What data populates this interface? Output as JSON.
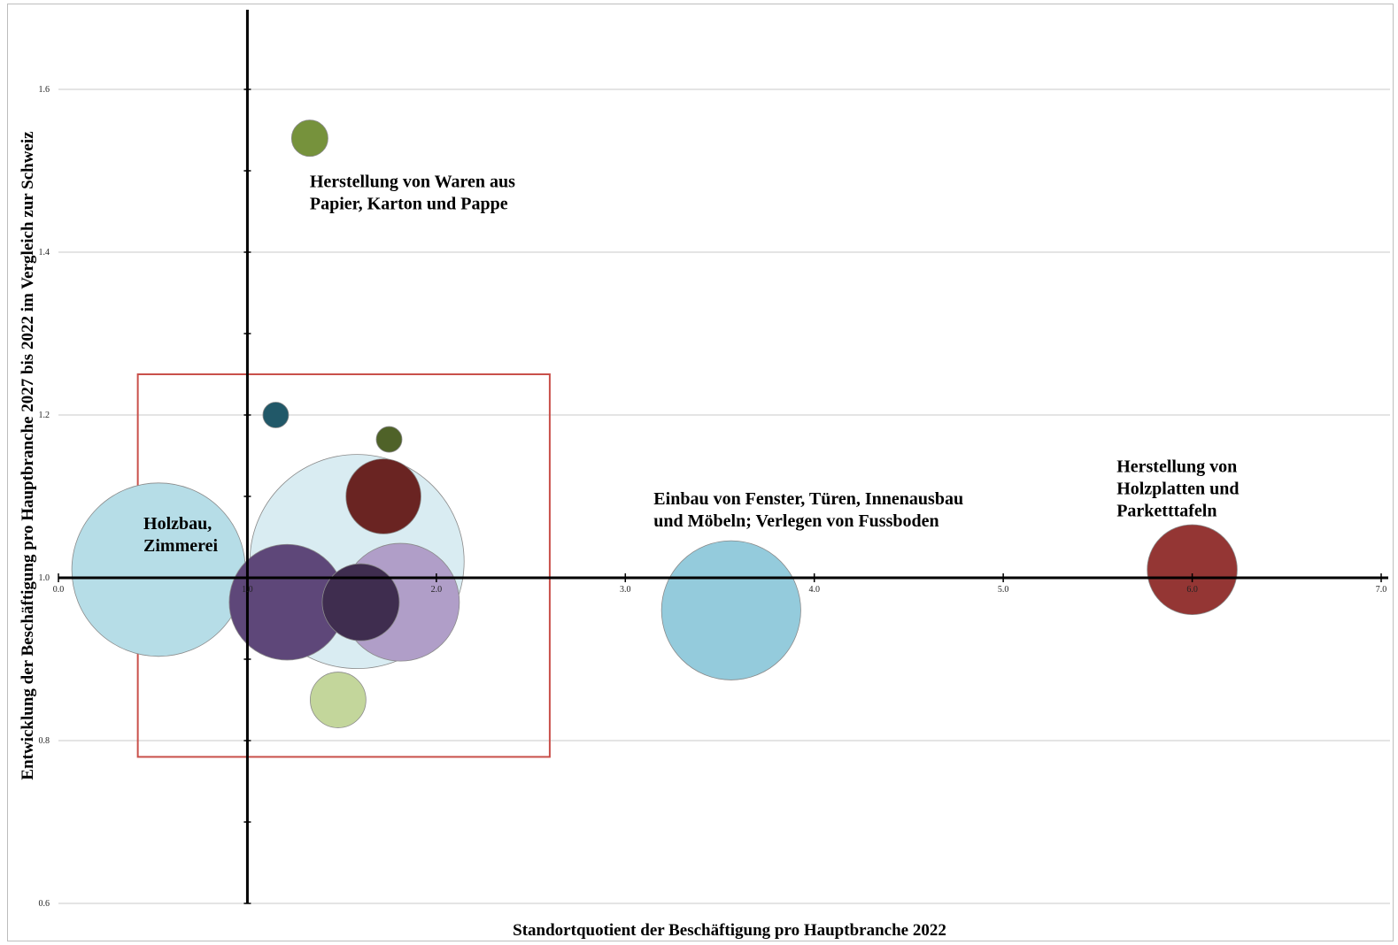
{
  "chart_data": {
    "type": "bubble",
    "xlabel": "Standortquotient der Beschäftigung pro Hauptbranche 2022",
    "ylabel": "Entwicklung der Beschäftigung pro Hauptbranche 2027 bis 2022 im Vergleich zur Schweiz",
    "xlim": [
      0.0,
      7.0
    ],
    "ylim": [
      0.6,
      1.7
    ],
    "x_ticks": [
      "0.0",
      "1.0",
      "2.0",
      "3.0",
      "4.0",
      "5.0",
      "6.0",
      "7.0"
    ],
    "y_ticks": [
      "0.6",
      "0.8",
      "1.0",
      "1.2",
      "1.4",
      "1.6"
    ],
    "x_axis_crosses_y": 1.0,
    "y_axis_crosses_x": 1.0,
    "grid": "horizontal",
    "bubbles": [
      {
        "x": 1.58,
        "y": 1.02,
        "size": 1.0,
        "color": "#d9ecf2"
      },
      {
        "x": 0.53,
        "y": 1.01,
        "size": 0.81,
        "color": "#b6dde7"
      },
      {
        "x": 3.56,
        "y": 0.96,
        "size": 0.65,
        "color": "#94cbdc"
      },
      {
        "x": 1.82,
        "y": 0.98,
        "size": 0.38,
        "color": "#e6e0ec"
      },
      {
        "x": 1.81,
        "y": 0.97,
        "size": 0.55,
        "color": "#b09ec8"
      },
      {
        "x": 1.21,
        "y": 0.97,
        "size": 0.54,
        "color": "#5e4779"
      },
      {
        "x": 1.6,
        "y": 0.97,
        "size": 0.36,
        "color": "#3f2d4f"
      },
      {
        "x": 1.72,
        "y": 1.1,
        "size": 0.35,
        "color": "#6a2422"
      },
      {
        "x": 6.0,
        "y": 1.01,
        "size": 0.42,
        "color": "#943634"
      },
      {
        "x": 1.33,
        "y": 1.54,
        "size": 0.17,
        "color": "#76923c"
      },
      {
        "x": 1.15,
        "y": 1.2,
        "size": 0.12,
        "color": "#215868"
      },
      {
        "x": 1.75,
        "y": 1.17,
        "size": 0.12,
        "color": "#4f6228"
      },
      {
        "x": 1.48,
        "y": 0.85,
        "size": 0.26,
        "color": "#c3d69b"
      }
    ],
    "annotations": [
      {
        "lines": [
          "Herstellung von Waren aus",
          "Papier, Karton und Pappe"
        ],
        "x": 1.33,
        "y": 1.48
      },
      {
        "lines": [
          "Holzbau,",
          "Zimmerei"
        ],
        "x": 0.45,
        "y": 1.06
      },
      {
        "lines": [
          "Einbau von Fenster, Türen, Innenausbau",
          "und Möbeln; Verlegen von Fussboden"
        ],
        "x": 3.15,
        "y": 1.09
      },
      {
        "lines": [
          "Herstellung  von",
          "Holzplatten und",
          "Parketttafeln"
        ],
        "x": 5.6,
        "y": 1.13
      }
    ],
    "highlight_box": {
      "x0": 0.42,
      "x1": 2.6,
      "y0": 0.78,
      "y1": 1.25,
      "color": "#c9504a"
    }
  }
}
